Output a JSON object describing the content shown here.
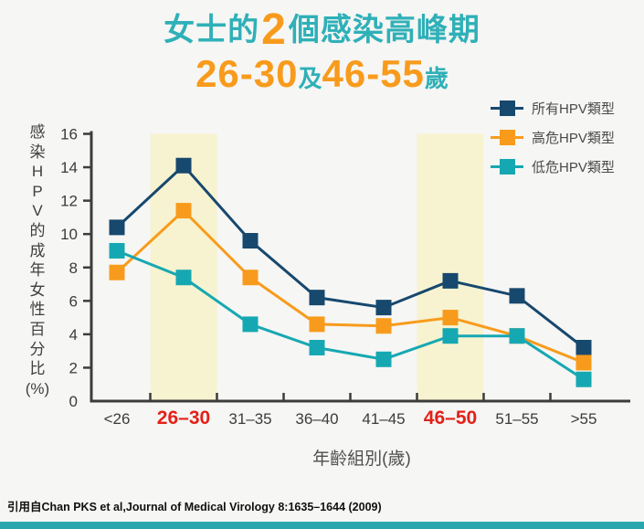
{
  "title": {
    "line1_prefix": "女士的",
    "line1_number": "2",
    "line1_suffix": "個感染高峰期",
    "line2_range1": "26-30",
    "line2_and": "及",
    "line2_range2": "46-55",
    "line2_suffix": "歲"
  },
  "citation": "引用自Chan PKS et al,Journal of Medical Virology 8:1635–1644 (2009)",
  "colors": {
    "background": "#f6f6f4",
    "title_teal": "#2fb0b8",
    "title_orange": "#f89b1c",
    "band": "#f7f3d0",
    "axis": "#3c3c3c",
    "tick_label": "#3b3b3b",
    "highlight_label": "#e32119",
    "legend_text": "#4a4a4a",
    "series_all": "#17486e",
    "series_high_risk": "#f89b1c",
    "series_low_risk": "#16a8b2",
    "footer_bar": "#2aa7ae"
  },
  "chart_data": {
    "type": "line",
    "title": "女士的2個感染高峰期 26-30及46-55歲",
    "categories": [
      "<26",
      "26–30",
      "31–35",
      "36–40",
      "41–45",
      "46–50",
      "51–55",
      ">55"
    ],
    "highlighted_categories": [
      "26–30",
      "46–50"
    ],
    "series": [
      {
        "name": "所有HPV類型",
        "color": "#17486e",
        "values": [
          10.4,
          14.1,
          9.6,
          6.2,
          5.6,
          7.2,
          6.3,
          3.2
        ]
      },
      {
        "name": "高危HPV類型",
        "color": "#f89b1c",
        "values": [
          7.7,
          11.4,
          7.4,
          4.6,
          4.5,
          5.0,
          3.9,
          2.3
        ]
      },
      {
        "name": "低危HPV類型",
        "color": "#16a8b2",
        "values": [
          9.0,
          7.4,
          4.6,
          3.2,
          2.5,
          3.9,
          3.9,
          1.3
        ]
      }
    ],
    "ylim": [
      0,
      16
    ],
    "ytick_step": 2,
    "yticks": [
      0,
      2,
      4,
      6,
      8,
      10,
      12,
      14,
      16
    ],
    "xlabel": "年齡組別(歲)",
    "ylabel": "感染HPV的成年女性百分比(%)",
    "ylabel_chars": [
      "感",
      "染",
      "H",
      "P",
      "V",
      "的",
      "成",
      "年",
      "女",
      "性",
      "百",
      "分",
      "比",
      "(%)"
    ],
    "legend_position": "top-right",
    "grid": false
  }
}
